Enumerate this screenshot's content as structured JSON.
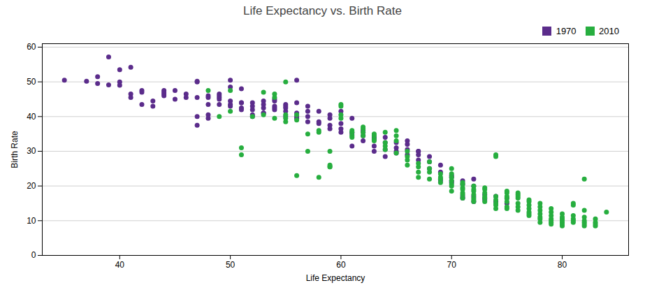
{
  "chart_data": {
    "type": "scatter",
    "title": "Life Expectancy vs. Birth Rate",
    "xlabel": "Life Expectancy",
    "ylabel": "Birth Rate",
    "xlim": [
      33,
      86
    ],
    "ylim": [
      0,
      61
    ],
    "xticks": [
      40,
      50,
      60,
      70,
      80
    ],
    "yticks": [
      0,
      10,
      20,
      30,
      40,
      50,
      60
    ],
    "grid": "y",
    "legend": "upper right",
    "marker": "circle",
    "series": [
      {
        "name": "1970",
        "color": "#5B2C8B",
        "values": [
          [
            35,
            50.5
          ],
          [
            37,
            50.2
          ],
          [
            38,
            49.5
          ],
          [
            38,
            51.5
          ],
          [
            39,
            57.2
          ],
          [
            39,
            49.1
          ],
          [
            40,
            53.5
          ],
          [
            40,
            50.0
          ],
          [
            40,
            49.0
          ],
          [
            41,
            54.2
          ],
          [
            41,
            46.5
          ],
          [
            41,
            45.5
          ],
          [
            42,
            43.5
          ],
          [
            42,
            47.5
          ],
          [
            42,
            47.0
          ],
          [
            43,
            43.0
          ],
          [
            43,
            44.5
          ],
          [
            44,
            47.5
          ],
          [
            44,
            47.0
          ],
          [
            44,
            46.5
          ],
          [
            44,
            46.0
          ],
          [
            45,
            47.5
          ],
          [
            45,
            45.0
          ],
          [
            46,
            46.5
          ],
          [
            46,
            45.5
          ],
          [
            47,
            37.5
          ],
          [
            47,
            40.0
          ],
          [
            47,
            45.5
          ],
          [
            47,
            50.0
          ],
          [
            47,
            50.2
          ],
          [
            48,
            39.5
          ],
          [
            48,
            40.5
          ],
          [
            48,
            46.0
          ],
          [
            48,
            45.5
          ],
          [
            48,
            43.5
          ],
          [
            49,
            45.5
          ],
          [
            49,
            46.5
          ],
          [
            49,
            45.0
          ],
          [
            49,
            46.0
          ],
          [
            49,
            43.5
          ],
          [
            50,
            48.5
          ],
          [
            50,
            43.0
          ],
          [
            50,
            43.5
          ],
          [
            50,
            50.5
          ],
          [
            50,
            44.5
          ],
          [
            51,
            44.0
          ],
          [
            51,
            42.5
          ],
          [
            51,
            44.0
          ],
          [
            51,
            48.0
          ],
          [
            51,
            42.0
          ],
          [
            52,
            40.0
          ],
          [
            52,
            42.0
          ],
          [
            52,
            44.0
          ],
          [
            52,
            43.0
          ],
          [
            52,
            40.5
          ],
          [
            53,
            43.5
          ],
          [
            53,
            42.5
          ],
          [
            53,
            44.5
          ],
          [
            53,
            41.0
          ],
          [
            53,
            41.0
          ],
          [
            54,
            45.0
          ],
          [
            54,
            44.5
          ],
          [
            54,
            43.0
          ],
          [
            54,
            42.0
          ],
          [
            54,
            42.5
          ],
          [
            55,
            41.5
          ],
          [
            55,
            42.5
          ],
          [
            55,
            40.0
          ],
          [
            55,
            43.5
          ],
          [
            55,
            43.0
          ],
          [
            56,
            39.5
          ],
          [
            56,
            40.0
          ],
          [
            56,
            41.0
          ],
          [
            56,
            50.5
          ],
          [
            56,
            44.0
          ],
          [
            57,
            38.5
          ],
          [
            57,
            40.0
          ],
          [
            57,
            41.5
          ],
          [
            57,
            43.0
          ],
          [
            58,
            41.5
          ],
          [
            58,
            38.0
          ],
          [
            58,
            38.5
          ],
          [
            59,
            39.5
          ],
          [
            59,
            37.5
          ],
          [
            59,
            36.5
          ],
          [
            59,
            40.5
          ],
          [
            60,
            36.5
          ],
          [
            60,
            35.5
          ],
          [
            60,
            38.0
          ],
          [
            60,
            41.5
          ],
          [
            61,
            35.0
          ],
          [
            61,
            31.5
          ],
          [
            61,
            35.5
          ],
          [
            61,
            39.5
          ],
          [
            62,
            34.5
          ],
          [
            62,
            33.0
          ],
          [
            62,
            35.5
          ],
          [
            62,
            36.0
          ],
          [
            63,
            33.5
          ],
          [
            63,
            34.0
          ],
          [
            63,
            31.5
          ],
          [
            63,
            30.0
          ],
          [
            64,
            32.5
          ],
          [
            64,
            30.5
          ],
          [
            64,
            34.0
          ],
          [
            64,
            28.5
          ],
          [
            65,
            31.0
          ],
          [
            65,
            30.0
          ],
          [
            65,
            29.5
          ],
          [
            65,
            32.5
          ],
          [
            66,
            30.5
          ],
          [
            66,
            32.0
          ],
          [
            66,
            33.0
          ],
          [
            66,
            29.0
          ],
          [
            67,
            30.0
          ],
          [
            67,
            29.0
          ],
          [
            67,
            27.5
          ],
          [
            67,
            30.0
          ],
          [
            68,
            28.5
          ],
          [
            68,
            27.0
          ],
          [
            68,
            25.0
          ],
          [
            69,
            22.0
          ],
          [
            69,
            21.5
          ],
          [
            69,
            24.0
          ],
          [
            69,
            26.0
          ],
          [
            70,
            21.5
          ],
          [
            70,
            22.5
          ],
          [
            70,
            23.0
          ],
          [
            70,
            21.0
          ],
          [
            71,
            20.5
          ],
          [
            71,
            21.5
          ],
          [
            71,
            17.0
          ],
          [
            71,
            16.5
          ],
          [
            72,
            20.0
          ],
          [
            72,
            22.0
          ],
          [
            72,
            17.0
          ],
          [
            72,
            15.5
          ],
          [
            73,
            17.5
          ],
          [
            73,
            16.5
          ],
          [
            73,
            16.0
          ],
          [
            74,
            15.5
          ],
          [
            74,
            17.0
          ],
          [
            75,
            15.0
          ],
          [
            75,
            16.5
          ]
        ]
      },
      {
        "name": "2010",
        "color": "#27AE3F",
        "values": [
          [
            48,
            47.5
          ],
          [
            49,
            40.0
          ],
          [
            50,
            41.5
          ],
          [
            50,
            47.5
          ],
          [
            51,
            31.0
          ],
          [
            51,
            29.0
          ],
          [
            52,
            40.0
          ],
          [
            53,
            40.5
          ],
          [
            53,
            47.0
          ],
          [
            54,
            46.5
          ],
          [
            54,
            45.5
          ],
          [
            54,
            39.5
          ],
          [
            55,
            40.5
          ],
          [
            55,
            39.5
          ],
          [
            55,
            38.5
          ],
          [
            55,
            50.0
          ],
          [
            56,
            40.5
          ],
          [
            56,
            39.0
          ],
          [
            56,
            23.0
          ],
          [
            57,
            30.0
          ],
          [
            57,
            35.0
          ],
          [
            58,
            22.5
          ],
          [
            58,
            35.5
          ],
          [
            58,
            36.0
          ],
          [
            59,
            25.5
          ],
          [
            59,
            25.5
          ],
          [
            59,
            26.0
          ],
          [
            59,
            30.0
          ],
          [
            60,
            43.0
          ],
          [
            60,
            43.5
          ],
          [
            60,
            39.5
          ],
          [
            60,
            40.5
          ],
          [
            61,
            35.5
          ],
          [
            61,
            34.5
          ],
          [
            61,
            34.0
          ],
          [
            61,
            36.0
          ],
          [
            62,
            36.5
          ],
          [
            62,
            35.5
          ],
          [
            62,
            34.5
          ],
          [
            62,
            37.0
          ],
          [
            63,
            33.5
          ],
          [
            63,
            35.0
          ],
          [
            63,
            33.0
          ],
          [
            63,
            34.5
          ],
          [
            64,
            35.5
          ],
          [
            64,
            32.5
          ],
          [
            64,
            31.5
          ],
          [
            64,
            30.5
          ],
          [
            65,
            36.0
          ],
          [
            65,
            34.5
          ],
          [
            65,
            33.0
          ],
          [
            65,
            29.5
          ],
          [
            66,
            28.5
          ],
          [
            66,
            30.0
          ],
          [
            66,
            27.5
          ],
          [
            66,
            26.0
          ],
          [
            67,
            25.5
          ],
          [
            67,
            24.0
          ],
          [
            67,
            22.5
          ],
          [
            67,
            26.5
          ],
          [
            68,
            25.0
          ],
          [
            68,
            22.0
          ],
          [
            68,
            24.0
          ],
          [
            68,
            27.0
          ],
          [
            69,
            23.5
          ],
          [
            69,
            22.0
          ],
          [
            69,
            21.0
          ],
          [
            69,
            22.5
          ],
          [
            70,
            21.5
          ],
          [
            70,
            20.5
          ],
          [
            70,
            20.0
          ],
          [
            70,
            18.5
          ],
          [
            70,
            23.5
          ],
          [
            70,
            25.0
          ],
          [
            70,
            22.5
          ],
          [
            71,
            21.0
          ],
          [
            71,
            19.5
          ],
          [
            71,
            18.0
          ],
          [
            71,
            20.5
          ],
          [
            71,
            19.0
          ],
          [
            71,
            17.5
          ],
          [
            71,
            16.5
          ],
          [
            72,
            18.5
          ],
          [
            72,
            17.5
          ],
          [
            72,
            16.5
          ],
          [
            72,
            20.0
          ],
          [
            72,
            19.0
          ],
          [
            72,
            15.5
          ],
          [
            72,
            16.0
          ],
          [
            73,
            16.5
          ],
          [
            73,
            15.5
          ],
          [
            73,
            18.0
          ],
          [
            73,
            17.0
          ],
          [
            73,
            19.0
          ],
          [
            73,
            19.5
          ],
          [
            74,
            16.0
          ],
          [
            74,
            15.0
          ],
          [
            74,
            14.5
          ],
          [
            74,
            17.0
          ],
          [
            74,
            13.5
          ],
          [
            74,
            29.0
          ],
          [
            74,
            28.5
          ],
          [
            75,
            18.0
          ],
          [
            75,
            17.0
          ],
          [
            75,
            16.5
          ],
          [
            75,
            15.5
          ],
          [
            75,
            14.0
          ],
          [
            75,
            13.5
          ],
          [
            75,
            18.5
          ],
          [
            76,
            17.5
          ],
          [
            76,
            16.5
          ],
          [
            76,
            15.0
          ],
          [
            76,
            14.0
          ],
          [
            76,
            13.0
          ],
          [
            76,
            18.0
          ],
          [
            76,
            17.0
          ],
          [
            77,
            16.0
          ],
          [
            77,
            15.5
          ],
          [
            77,
            14.5
          ],
          [
            77,
            13.5
          ],
          [
            77,
            12.5
          ],
          [
            77,
            11.5
          ],
          [
            77,
            12.0
          ],
          [
            78,
            15.0
          ],
          [
            78,
            14.0
          ],
          [
            78,
            13.0
          ],
          [
            78,
            12.0
          ],
          [
            78,
            11.0
          ],
          [
            78,
            10.5
          ],
          [
            78,
            9.5
          ],
          [
            79,
            13.5
          ],
          [
            79,
            12.5
          ],
          [
            79,
            11.5
          ],
          [
            79,
            10.5
          ],
          [
            79,
            10.0
          ],
          [
            79,
            9.5
          ],
          [
            79,
            9.0
          ],
          [
            80,
            12.0
          ],
          [
            80,
            11.0
          ],
          [
            80,
            10.5
          ],
          [
            80,
            10.0
          ],
          [
            80,
            9.5
          ],
          [
            80,
            9.0
          ],
          [
            80,
            8.5
          ],
          [
            81,
            11.5
          ],
          [
            81,
            10.5
          ],
          [
            81,
            10.0
          ],
          [
            81,
            9.5
          ],
          [
            81,
            15.0
          ],
          [
            81,
            14.5
          ],
          [
            82,
            11.0
          ],
          [
            82,
            10.0
          ],
          [
            82,
            9.5
          ],
          [
            82,
            9.0
          ],
          [
            82,
            8.5
          ],
          [
            82,
            13.0
          ],
          [
            82,
            22.0
          ],
          [
            83,
            10.5
          ],
          [
            83,
            9.5
          ],
          [
            83,
            9.0
          ],
          [
            83,
            8.5
          ],
          [
            84,
            12.5
          ]
        ]
      }
    ]
  }
}
